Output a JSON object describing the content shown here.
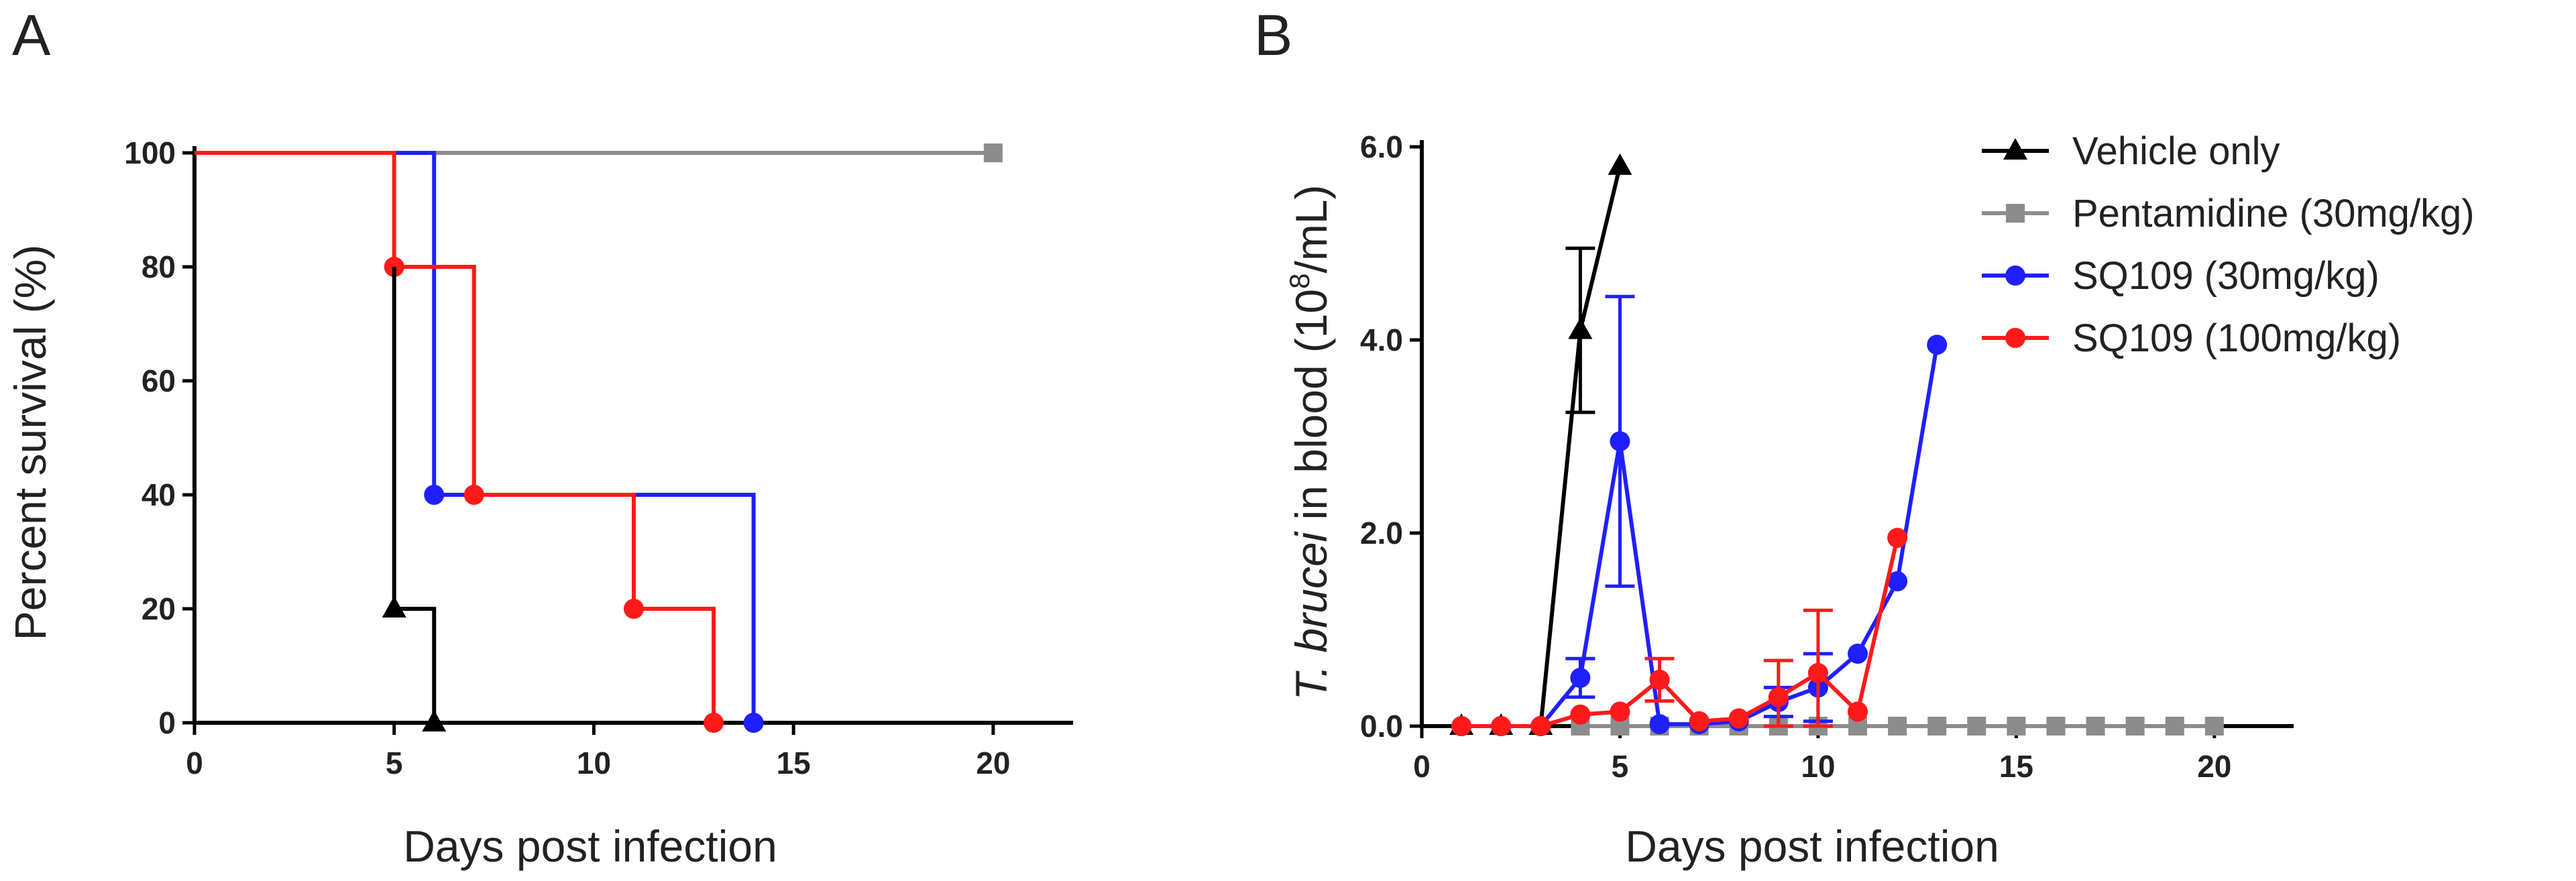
{
  "figure": {
    "colors": {
      "vehicle": "#000000",
      "pentamidine": "#8c8c8c",
      "sq109_30": "#1f1fff",
      "sq109_100": "#ff1a1a"
    }
  },
  "chart_data": [
    {
      "panel": "A",
      "type": "line",
      "subtype": "kaplan-meier step",
      "title": "",
      "xlabel": "Days post infection",
      "ylabel": "Percent survival (%)",
      "xlim": [
        0,
        22
      ],
      "ylim": [
        0,
        100
      ],
      "xticks": [
        "0",
        "5",
        "10",
        "15",
        "20"
      ],
      "yticks": [
        "0",
        "20",
        "40",
        "60",
        "80",
        "100"
      ],
      "xtick_values": [
        0,
        5,
        10,
        15,
        20
      ],
      "ytick_values": [
        0,
        20,
        40,
        60,
        80,
        100
      ],
      "series": [
        {
          "name": "Pentamidine (30mg/kg)",
          "color_key": "pentamidine",
          "marker": "square",
          "steps": [
            [
              0,
              100
            ],
            [
              20,
              100
            ]
          ],
          "points": [
            [
              20,
              100
            ]
          ]
        },
        {
          "name": "SQ109 (30mg/kg)",
          "color_key": "sq109_30",
          "marker": "circle",
          "steps": [
            [
              0,
              100
            ],
            [
              6,
              100
            ],
            [
              6,
              40
            ],
            [
              14,
              40
            ],
            [
              14,
              20
            ],
            [
              14,
              0
            ]
          ],
          "points": [
            [
              6,
              40
            ],
            [
              14,
              0
            ]
          ]
        },
        {
          "name": "SQ109 (100mg/kg)",
          "color_key": "sq109_100",
          "marker": "circle",
          "steps": [
            [
              0,
              100
            ],
            [
              5,
              100
            ],
            [
              5,
              80
            ],
            [
              7,
              80
            ],
            [
              7,
              40
            ],
            [
              11,
              40
            ],
            [
              11,
              20
            ],
            [
              13,
              20
            ],
            [
              13,
              0
            ]
          ],
          "points": [
            [
              5,
              80
            ],
            [
              7,
              40
            ],
            [
              11,
              20
            ],
            [
              13,
              0
            ]
          ]
        },
        {
          "name": "Vehicle only",
          "color_key": "vehicle",
          "marker": "triangle",
          "steps": [
            [
              5,
              80
            ],
            [
              5,
              20
            ],
            [
              6,
              20
            ],
            [
              6,
              0
            ]
          ],
          "points": [
            [
              5,
              20
            ],
            [
              6,
              0
            ]
          ]
        }
      ]
    },
    {
      "panel": "B",
      "type": "line",
      "title": "",
      "xlabel": "Days post infection",
      "ylabel_italic": "T. brucei",
      "ylabel_rest": " in blood",
      "ylabel_unit_base": "(10",
      "ylabel_unit_exp": "8",
      "ylabel_unit_tail": "/mL)",
      "xlim": [
        0,
        22
      ],
      "ylim": [
        0,
        6
      ],
      "xticks": [
        "0",
        "5",
        "10",
        "15",
        "20"
      ],
      "yticks": [
        "0.0",
        "2.0",
        "4.0",
        "6.0"
      ],
      "xtick_values": [
        0,
        5,
        10,
        15,
        20
      ],
      "ytick_values": [
        0,
        2,
        4,
        6
      ],
      "legend_position": "top-right",
      "series": [
        {
          "name": "Vehicle only",
          "color_key": "vehicle",
          "marker": "triangle",
          "x": [
            1,
            2,
            3,
            4,
            5
          ],
          "y": [
            0,
            0,
            0,
            4.1,
            5.8
          ],
          "err": [
            0,
            0,
            0,
            0.85,
            0
          ]
        },
        {
          "name": "Pentamidine (30mg/kg)",
          "color_key": "pentamidine",
          "marker": "square",
          "x": [
            4,
            5,
            6,
            7,
            8,
            9,
            10,
            11,
            12,
            13,
            14,
            15,
            16,
            17,
            18,
            19,
            20
          ],
          "y": [
            0,
            0,
            0,
            0,
            0,
            0,
            0,
            0,
            0,
            0,
            0,
            0,
            0,
            0,
            0,
            0,
            0
          ],
          "err": [
            0,
            0,
            0,
            0,
            0,
            0,
            0,
            0,
            0,
            0,
            0,
            0,
            0,
            0,
            0,
            0,
            0
          ]
        },
        {
          "name": "SQ109 (30mg/kg)",
          "color_key": "sq109_30",
          "marker": "circle",
          "x": [
            1,
            2,
            3,
            4,
            5,
            6,
            7,
            8,
            9,
            10,
            11,
            12,
            13
          ],
          "y": [
            0,
            0,
            0,
            0.5,
            2.95,
            0.02,
            0.02,
            0.05,
            0.25,
            0.4,
            0.75,
            1.5,
            3.95
          ],
          "err": [
            0,
            0,
            0,
            0.2,
            1.5,
            0,
            0,
            0,
            0.15,
            0.35,
            0,
            0,
            0
          ]
        },
        {
          "name": "SQ109 (100mg/kg)",
          "color_key": "sq109_100",
          "marker": "circle",
          "x": [
            1,
            2,
            3,
            4,
            5,
            6,
            7,
            8,
            9,
            10,
            11,
            12
          ],
          "y": [
            0,
            0,
            0,
            0.12,
            0.15,
            0.48,
            0.05,
            0.08,
            0.3,
            0.55,
            0.15,
            1.95
          ],
          "err": [
            0,
            0,
            0,
            0,
            0,
            0.22,
            0,
            0,
            0.38,
            0.65,
            0,
            0
          ]
        }
      ]
    }
  ]
}
